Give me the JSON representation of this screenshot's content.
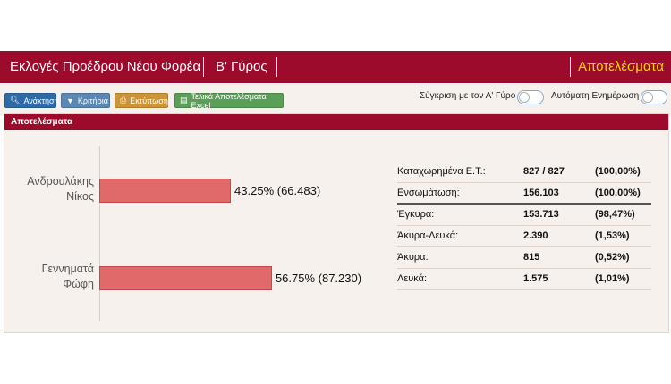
{
  "header": {
    "title": "Εκλογές Προέδρου Νέου Φορέα",
    "round": "Β' Γύρος",
    "results_link": "Αποτελέσματα"
  },
  "toolbar": {
    "buttons": [
      {
        "label": "Ανάκτηση",
        "icon": "search-icon"
      },
      {
        "label": "Κριτήρια",
        "icon": "filter-icon"
      },
      {
        "label": "Εκτύπωση",
        "icon": "print-icon"
      },
      {
        "label": "Τελικά Αποτελέσματα Excel",
        "icon": "excel-icon"
      }
    ],
    "compare_label": "Σύγκριση με τον Α' Γύρο",
    "compare_on": false,
    "auto_update_label": "Αυτόματη Ενημέρωση",
    "auto_update_on": false
  },
  "panel": {
    "title": "Αποτελέσματα"
  },
  "chart_data": {
    "type": "bar",
    "orientation": "horizontal",
    "categories": [
      "Ανδρουλάκης Νίκος",
      "Γεννηματά Φώφη"
    ],
    "category_lines": [
      [
        "Ανδρουλάκης",
        "Νίκος"
      ],
      [
        "Γεννηματά",
        "Φώφη"
      ]
    ],
    "values": [
      43.25,
      56.75
    ],
    "votes": [
      66483,
      87230
    ],
    "labels": [
      "43.25% (66.483)",
      "56.75% (87.230)"
    ],
    "color": "#e06a6a",
    "xlim": [
      0,
      100
    ]
  },
  "stats": [
    {
      "label": "Καταχωρημένα Ε.Τ.:",
      "value": "827 / 827",
      "pct": "(100,00%)"
    },
    {
      "label": "Ενσωμάτωση:",
      "value": "156.103",
      "pct": "(100,00%)"
    },
    {
      "label": "Έγκυρα:",
      "value": "153.713",
      "pct": "(98,47%)"
    },
    {
      "label": "Άκυρα-Λευκά:",
      "value": "2.390",
      "pct": "(1,53%)"
    },
    {
      "label": "Άκυρα:",
      "value": "815",
      "pct": "(0,52%)"
    },
    {
      "label": "Λευκά:",
      "value": "1.575",
      "pct": "(1,01%)"
    }
  ],
  "colors": {
    "brand": "#9c0b2c",
    "accent_text": "#f5d800",
    "panel_bg": "#f6f1ec"
  }
}
